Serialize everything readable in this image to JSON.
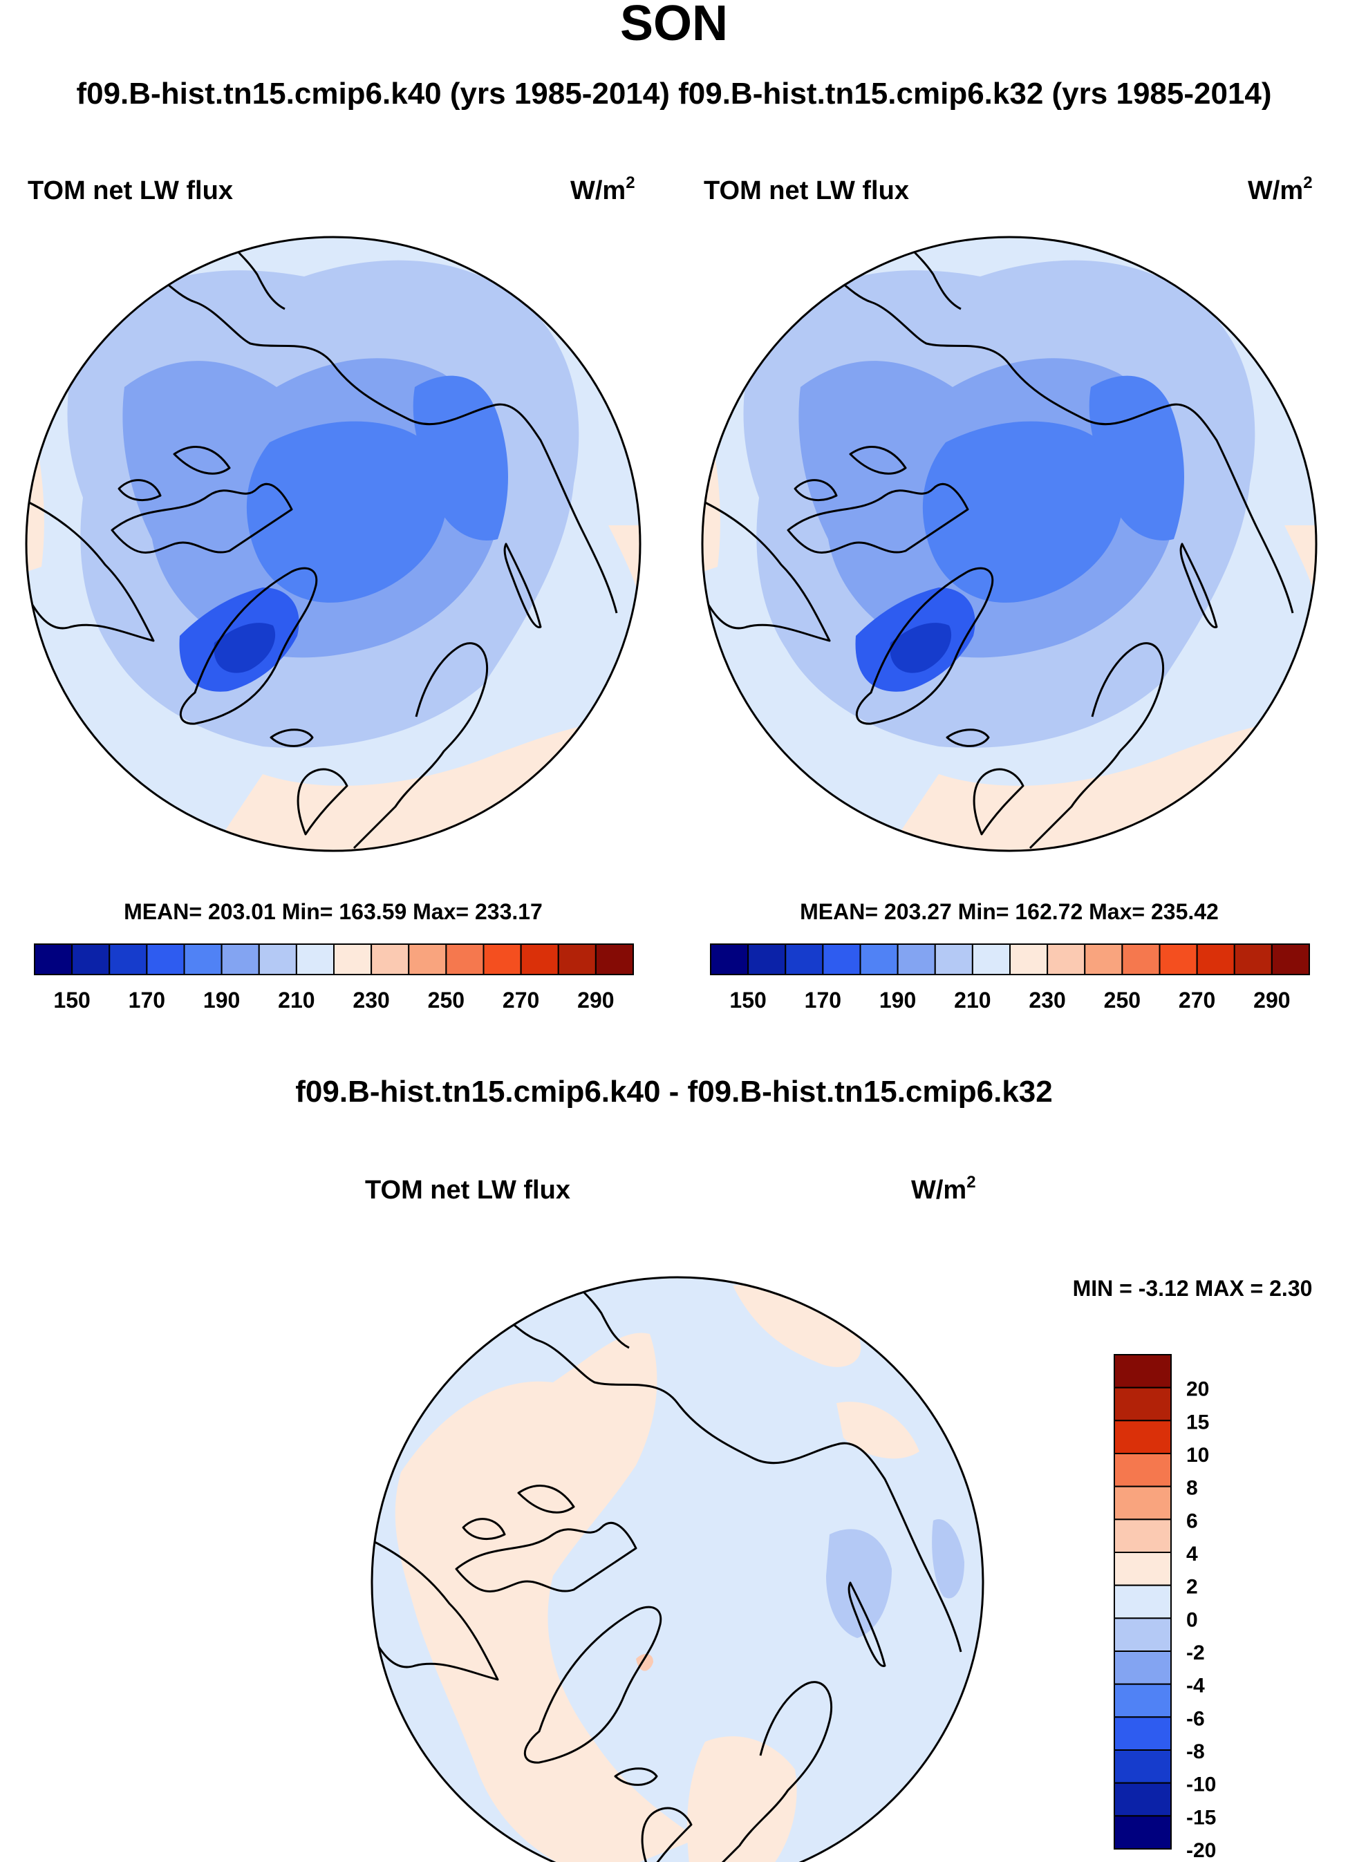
{
  "figure": {
    "season": "SON",
    "header": "f09.B-hist.tn15.cmip6.k40 (yrs 1985-2014) f09.B-hist.tn15.cmip6.k32 (yrs 1985-2014)",
    "diff_title": "f09.B-hist.tn15.cmip6.k40 - f09.B-hist.tn15.cmip6.k32"
  },
  "panels": [
    {
      "id": "k40",
      "variable": "TOM net LW flux",
      "units_base": "W/m",
      "units_exp": "2",
      "stats": "MEAN= 203.01  Min= 163.59  Max= 233.17"
    },
    {
      "id": "k32",
      "variable": "TOM net LW flux",
      "units_base": "W/m",
      "units_exp": "2",
      "stats": "MEAN= 203.27  Min= 162.72  Max= 235.42"
    },
    {
      "id": "diff",
      "variable": "TOM net LW flux",
      "units_base": "W/m",
      "units_exp": "2",
      "stats": "MIN =  -3.12 MAX =   2.30"
    }
  ],
  "colorbars": {
    "absolute": {
      "colors": [
        "#00007f",
        "#0b22a8",
        "#163ccc",
        "#2e5cf0",
        "#5082f5",
        "#83a4f2",
        "#b4c9f5",
        "#dbe9fb",
        "#fde9db",
        "#fbcab2",
        "#f9a47e",
        "#f5784e",
        "#f44f1f",
        "#da3009",
        "#b22208",
        "#850b05"
      ],
      "tick_labels": [
        "150",
        "170",
        "190",
        "210",
        "230",
        "250",
        "270",
        "290"
      ],
      "tick_positions": [
        1,
        3,
        5,
        7,
        9,
        11,
        13,
        15
      ]
    },
    "difference": {
      "colors_top_to_bottom": [
        "#850b05",
        "#b22208",
        "#da3009",
        "#f5784e",
        "#f9a47e",
        "#fbcab2",
        "#fde9db",
        "#dbe9fb",
        "#b4c9f5",
        "#83a4f2",
        "#5082f5",
        "#2e5cf0",
        "#163ccc",
        "#0b22a8",
        "#00007f"
      ],
      "tick_labels": [
        "20",
        "15",
        "10",
        "8",
        "6",
        "4",
        "2",
        "0",
        "-2",
        "-4",
        "-6",
        "-8",
        "-10",
        "-15",
        "-20"
      ]
    }
  },
  "map_colors": {
    "lvl_200_210": "#b4c9f5",
    "lvl_210_220": "#dbe9fb",
    "lvl_220_230": "#fde9db",
    "lvl_190_200": "#83a4f2",
    "lvl_180_190": "#5082f5",
    "lvl_170_180": "#2e5cf0",
    "lvl_160_170": "#163ccc",
    "diff_0_2": "#fde9db",
    "diff_m2_0": "#dbe9fb",
    "diff_m4_m2": "#b4c9f5",
    "diff_2_4": "#fbcab2"
  }
}
